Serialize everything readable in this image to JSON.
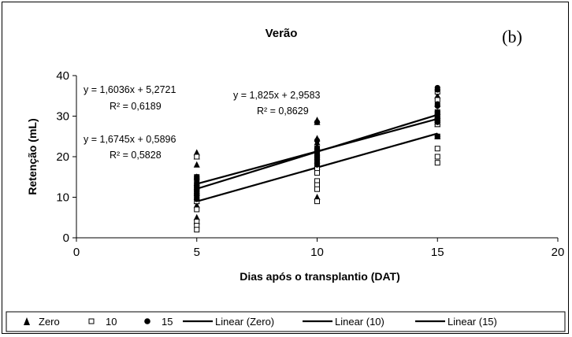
{
  "chart_data": {
    "type": "scatter",
    "title": "Verão",
    "panel_label": "(b)",
    "xlabel": "Dias após o transplantio (DAT)",
    "ylabel": "Retenção (mL)",
    "xlim": [
      0,
      20
    ],
    "ylim": [
      0,
      40
    ],
    "xticks": [
      0,
      5,
      10,
      15,
      20
    ],
    "yticks": [
      0,
      10,
      20,
      30,
      40
    ],
    "grid": false,
    "legend_position": "bottom",
    "series": [
      {
        "name": "Zero",
        "marker": "triangle",
        "points": [
          [
            5,
            21
          ],
          [
            5,
            20
          ],
          [
            5,
            18
          ],
          [
            5,
            15
          ],
          [
            5,
            13.5
          ],
          [
            5,
            12.5
          ],
          [
            5,
            11.5
          ],
          [
            5,
            11
          ],
          [
            5,
            10
          ],
          [
            5,
            9
          ],
          [
            5,
            8
          ],
          [
            5,
            5
          ],
          [
            5,
            4
          ],
          [
            10,
            29
          ],
          [
            10,
            28.5
          ],
          [
            10,
            24.5
          ],
          [
            10,
            23.5
          ],
          [
            10,
            22.5
          ],
          [
            10,
            22
          ],
          [
            10,
            21
          ],
          [
            10,
            20.5
          ],
          [
            10,
            20
          ],
          [
            10,
            19
          ],
          [
            10,
            18
          ],
          [
            10,
            17.5
          ],
          [
            10,
            10
          ],
          [
            15,
            35
          ],
          [
            15,
            33
          ],
          [
            15,
            31
          ],
          [
            15,
            30
          ],
          [
            15,
            29.5
          ],
          [
            15,
            29
          ],
          [
            15,
            28.5
          ],
          [
            15,
            28
          ],
          [
            15,
            25
          ]
        ]
      },
      {
        "name": "10",
        "marker": "square",
        "points": [
          [
            5,
            20
          ],
          [
            5,
            15
          ],
          [
            5,
            13
          ],
          [
            5,
            12
          ],
          [
            5,
            11
          ],
          [
            5,
            10
          ],
          [
            5,
            9
          ],
          [
            5,
            7
          ],
          [
            5,
            4
          ],
          [
            5,
            3
          ],
          [
            5,
            2
          ],
          [
            10,
            22
          ],
          [
            10,
            20
          ],
          [
            10,
            19
          ],
          [
            10,
            18
          ],
          [
            10,
            17
          ],
          [
            10,
            16
          ],
          [
            10,
            14
          ],
          [
            10,
            13
          ],
          [
            10,
            12
          ],
          [
            10,
            9
          ],
          [
            15,
            36
          ],
          [
            15,
            34
          ],
          [
            15,
            31
          ],
          [
            15,
            30
          ],
          [
            15,
            29
          ],
          [
            15,
            28
          ],
          [
            15,
            25
          ],
          [
            15,
            22
          ],
          [
            15,
            20
          ],
          [
            15,
            18.5
          ]
        ]
      },
      {
        "name": "15",
        "marker": "circle",
        "points": [
          [
            5,
            15
          ],
          [
            5,
            14.5
          ],
          [
            5,
            14
          ],
          [
            5,
            13.5
          ],
          [
            5,
            13
          ],
          [
            5,
            12.5
          ],
          [
            5,
            12
          ],
          [
            5,
            11.5
          ],
          [
            5,
            11
          ],
          [
            5,
            10.5
          ],
          [
            5,
            10
          ],
          [
            5,
            9.5
          ],
          [
            10,
            28.5
          ],
          [
            10,
            24
          ],
          [
            10,
            22
          ],
          [
            10,
            21.5
          ],
          [
            10,
            21
          ],
          [
            10,
            20.5
          ],
          [
            10,
            20
          ],
          [
            10,
            19.5
          ],
          [
            10,
            19
          ],
          [
            10,
            18.5
          ],
          [
            10,
            18
          ],
          [
            15,
            37
          ],
          [
            15,
            36.5
          ],
          [
            15,
            33
          ],
          [
            15,
            32.5
          ],
          [
            15,
            31
          ],
          [
            15,
            30
          ],
          [
            15,
            29.5
          ],
          [
            15,
            29
          ],
          [
            15,
            28.5
          ],
          [
            15,
            25
          ]
        ]
      }
    ],
    "trendlines": [
      {
        "name": "Linear (Zero)",
        "slope": 1.6036,
        "intercept": 5.2721,
        "x_range": [
          5,
          15
        ]
      },
      {
        "name": "Linear (10)",
        "slope": 1.6745,
        "intercept": 0.5896,
        "x_range": [
          5,
          15
        ]
      },
      {
        "name": "Linear (15)",
        "slope": 1.825,
        "intercept": 2.9583,
        "x_range": [
          5,
          15
        ]
      }
    ],
    "annotations": [
      {
        "equation": "y = 1,6036x + 5,2721",
        "r2": "R² = 0,6189"
      },
      {
        "equation": "y = 1,825x + 2,9583",
        "r2": "R² = 0,8629"
      },
      {
        "equation": "y = 1,6745x + 0,5896",
        "r2": "R² = 0,5828"
      }
    ],
    "legend": [
      "Zero",
      "10",
      "15",
      "Linear (Zero)",
      "Linear (10)",
      "Linear (15)"
    ]
  }
}
